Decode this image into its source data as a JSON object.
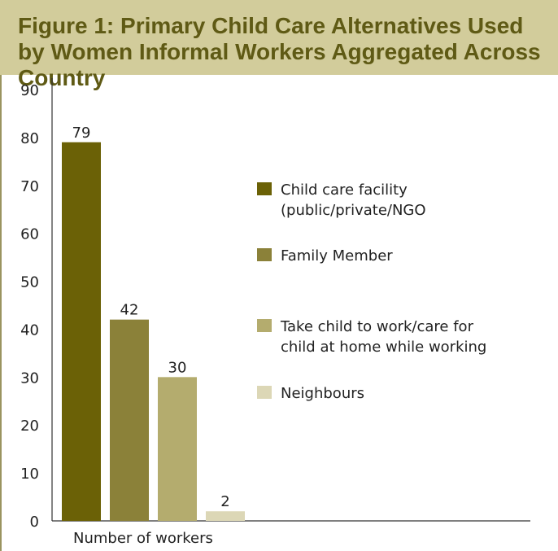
{
  "figure": {
    "title": "Figure 1: Primary Child Care Alternatives Used by Women Informal Workers Aggregated Across Country"
  },
  "colors": {
    "header_bg": "#d2cc9b",
    "title_text": "#5f5a15",
    "frame": "#9a9460"
  },
  "chart_data": {
    "type": "bar",
    "title": "Figure 1: Primary Child Care Alternatives Used by Women Informal Workers Aggregated Across Country",
    "xlabel": "Number of workers",
    "ylabel": "",
    "ylim": [
      0,
      90
    ],
    "yticks": [
      0,
      10,
      20,
      30,
      40,
      50,
      60,
      70,
      80,
      90
    ],
    "grid": false,
    "legend_position": "right",
    "series": [
      {
        "name": "Child care facility (public/private/NGO",
        "legend_lines": [
          "Child care facility",
          "(public/private/NGO"
        ],
        "value": 79,
        "color": "#6b6106"
      },
      {
        "name": "Family Member",
        "legend_lines": [
          "Family Member"
        ],
        "value": 42,
        "color": "#8b8139"
      },
      {
        "name": "Take child to work/care for child at home while working",
        "legend_lines": [
          "Take child to work/care for",
          "child at home while working"
        ],
        "value": 30,
        "color": "#b4ac6e"
      },
      {
        "name": "Neighbours",
        "legend_lines": [
          "Neighbours"
        ],
        "value": 2,
        "color": "#dcd7b6"
      }
    ]
  }
}
